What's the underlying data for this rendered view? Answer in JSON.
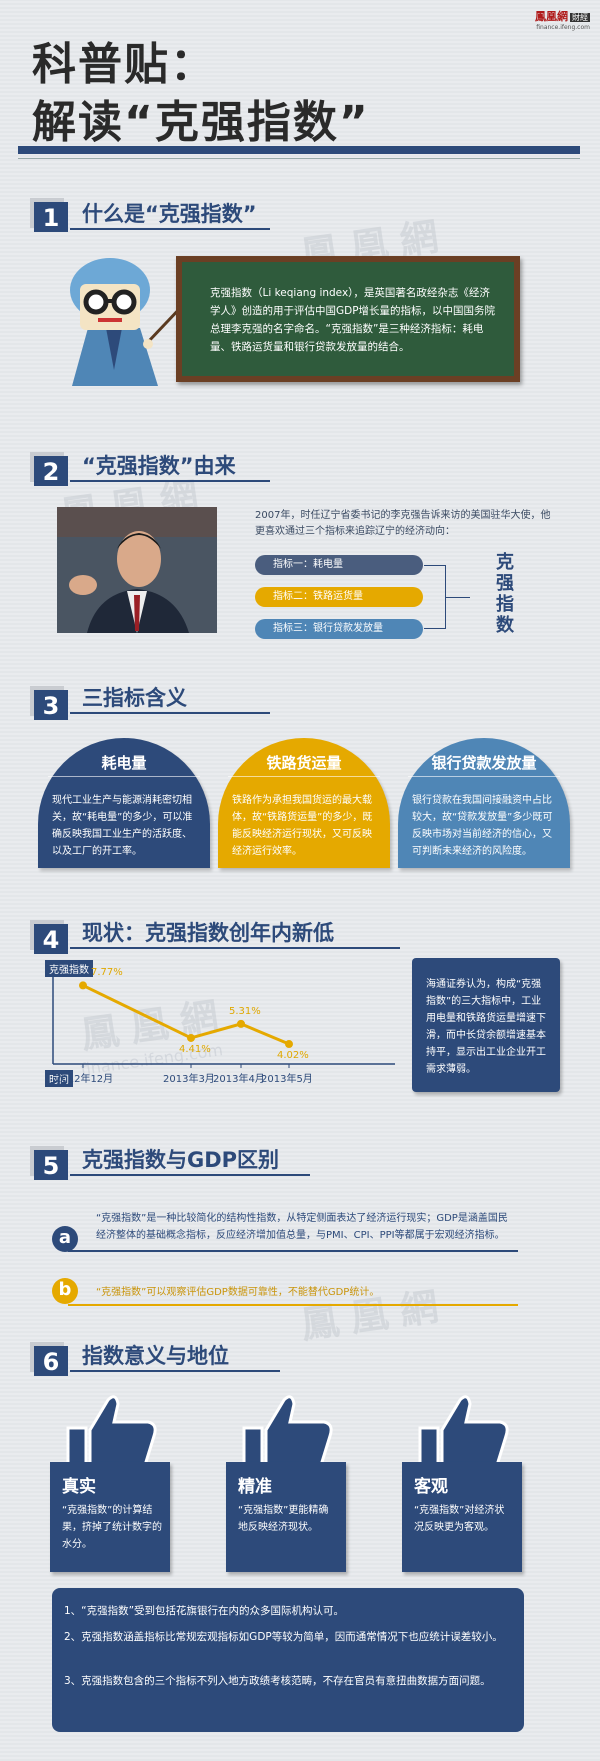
{
  "logo": {
    "name": "鳳凰網",
    "badge": "財經",
    "url": "finance.ifeng.com"
  },
  "title": {
    "line1": "科普贴：",
    "line2": "解读“克强指数”"
  },
  "watermark": {
    "text": "鳳凰網",
    "badge": "財經",
    "url": "finance.ifeng.com"
  },
  "s1": {
    "num": "1",
    "heading": "什么是“克强指数”",
    "board": "克强指数（Li keqiang index），是英国著名政经杂志《经济学人》创造的用于评估中国GDP增长量的指标，以中国国务院总理李克强的名字命名。“克强指数”是三种经济指标：耗电量、铁路运货量和银行贷款发放量的结合。"
  },
  "s2": {
    "num": "2",
    "heading": "“克强指数”由来",
    "intro": "2007年，时任辽宁省委书记的李克强告诉来访的美国驻华大使，他更喜欢通过三个指标来追踪辽宁的经济动向：",
    "items": [
      "指标一：耗电量",
      "指标二：铁路运货量",
      "指标三：银行贷款发放量"
    ],
    "vertical": [
      "克",
      "强",
      "指",
      "数"
    ]
  },
  "s3": {
    "num": "3",
    "heading": "三指标含义",
    "cards": [
      {
        "title": "耗电量",
        "body": "现代工业生产与能源消耗密切相关，故“耗电量”的多少，可以准确反映我国工业生产的活跃度、以及工厂的开工率。"
      },
      {
        "title": "铁路货运量",
        "body": "铁路作为承担我国货运的最大载体，故“铁路货运量”的多少，既能反映经济运行现状，又可反映经济运行效率。"
      },
      {
        "title": "银行贷款发放量",
        "body": "银行贷款在我国间接融资中占比较大，故“贷款发放量”多少既可反映市场对当前经济的信心，又可判断未来经济的风险度。"
      }
    ],
    "colors": [
      "#2d4a7a",
      "#e5a900",
      "#4f86b6"
    ]
  },
  "s4": {
    "num": "4",
    "heading": "现状：克强指数创年内新低",
    "chart_data": {
      "type": "line",
      "ylabel": "克强指数",
      "xlabel": "时间",
      "categories": [
        "2012年12月",
        "2013年3月",
        "2013年4月",
        "2013年5月"
      ],
      "values": [
        7.77,
        4.41,
        5.31,
        4.02
      ],
      "value_labels": [
        "7.77%",
        "4.41%",
        "5.31%",
        "4.02%"
      ],
      "ylim": [
        3,
        8.5
      ],
      "color": "#e5a900"
    },
    "side": "海通证券认为，构成“克强指数”的三大指标中，工业用电量和铁路货运量增速下滑，而中长贷余额增速基本持平，显示出工业企业开工需求薄弱。"
  },
  "s5": {
    "num": "5",
    "heading": "克强指数与GDP区别",
    "a": {
      "label": "a",
      "text": "“克强指数”是一种比较简化的结构性指数，从特定侧面表达了经济运行现实；GDP是涵盖国民经济整体的基础概念指标，反应经济增加值总量，与PMI、CPI、PPI等都属于宏观经济指标。"
    },
    "b": {
      "label": "b",
      "text": "“克强指数”可以观察评估GDP数据可靠性，不能替代GDP统计。"
    }
  },
  "s6": {
    "num": "6",
    "heading": "指数意义与地位",
    "cards": [
      {
        "title": "真实",
        "body": "“克强指数”的计算结果，挤掉了统计数字的水分。"
      },
      {
        "title": "精准",
        "body": "“克强指数”更能精确地反映经济现状。"
      },
      {
        "title": "客观",
        "body": "“克强指数”对经济状况反映更为客观。"
      }
    ],
    "points": [
      "1、“克强指数”受到包括花旗银行在内的众多国际机构认可。",
      "2、克强指数涵盖指标比常规宏观指标如GDP等较为简单，因而通常情况下也应统计误差较小。",
      "3、克强指数包含的三个指标不列入地方政绩考核范畴，不存在官员有意扭曲数据方面问题。"
    ]
  }
}
